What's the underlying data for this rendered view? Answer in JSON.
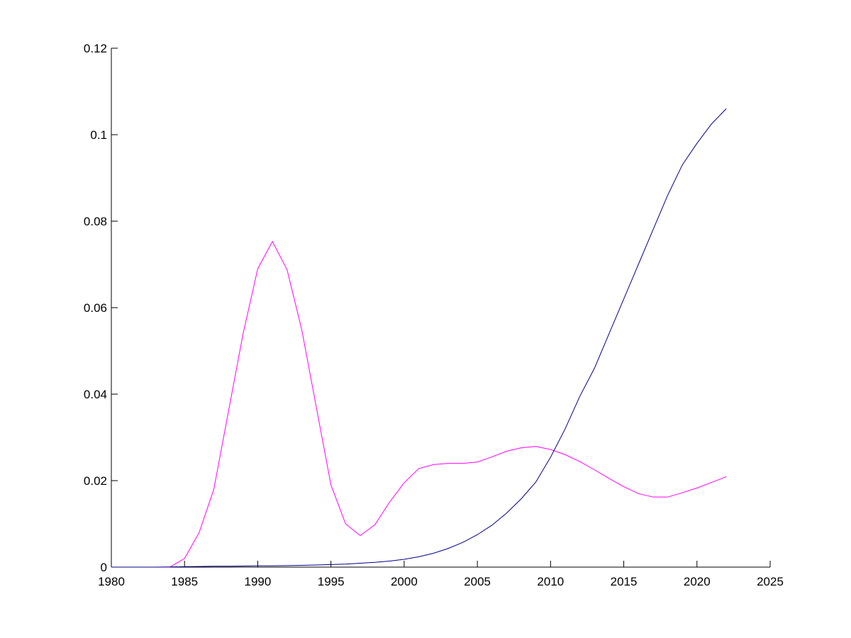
{
  "chart_data": {
    "type": "line",
    "x": [
      1980,
      1981,
      1982,
      1983,
      1984,
      1985,
      1986,
      1987,
      1988,
      1989,
      1990,
      1991,
      1992,
      1993,
      1994,
      1995,
      1996,
      1997,
      1998,
      1999,
      2000,
      2001,
      2002,
      2003,
      2004,
      2005,
      2006,
      2007,
      2008,
      2009,
      2010,
      2011,
      2012,
      2013,
      2014,
      2015,
      2016,
      2017,
      2018,
      2019,
      2020,
      2021,
      2022
    ],
    "series": [
      {
        "color": "#ff00ff",
        "values": [
          0,
          0,
          0,
          0,
          0,
          0.002,
          0.008,
          0.018,
          0.036,
          0.054,
          0.069,
          0.0753,
          0.0688,
          0.055,
          0.037,
          0.019,
          0.01,
          0.0073,
          0.0098,
          0.015,
          0.0195,
          0.0228,
          0.0237,
          0.024,
          0.024,
          0.0243,
          0.0255,
          0.0268,
          0.0276,
          0.0279,
          0.0272,
          0.026,
          0.0244,
          0.0225,
          0.0205,
          0.0186,
          0.017,
          0.0162,
          0.0162,
          0.0172,
          0.0183,
          0.0196,
          0.0209
        ]
      },
      {
        "color": "#00008b",
        "values": [
          0,
          0,
          0,
          0,
          5e-05,
          0.0001,
          0.00015,
          0.0002,
          0.0002,
          0.00025,
          0.0003,
          0.0003,
          0.00035,
          0.0004,
          0.0005,
          0.0006,
          0.0007,
          0.0009,
          0.0011,
          0.0014,
          0.0018,
          0.0024,
          0.0032,
          0.0043,
          0.0057,
          0.0075,
          0.0097,
          0.0125,
          0.0158,
          0.0197,
          0.0254,
          0.032,
          0.0395,
          0.046,
          0.054,
          0.062,
          0.07,
          0.078,
          0.086,
          0.093,
          0.098,
          0.1025,
          0.106
        ]
      }
    ],
    "xlim": [
      1980,
      2025
    ],
    "xticks": [
      1980,
      1985,
      1990,
      1995,
      2000,
      2005,
      2010,
      2015,
      2020,
      2025
    ],
    "ylim": [
      0,
      0.12
    ],
    "yticks": [
      0,
      0.02,
      0.04,
      0.06,
      0.08,
      0.1,
      0.12
    ]
  }
}
